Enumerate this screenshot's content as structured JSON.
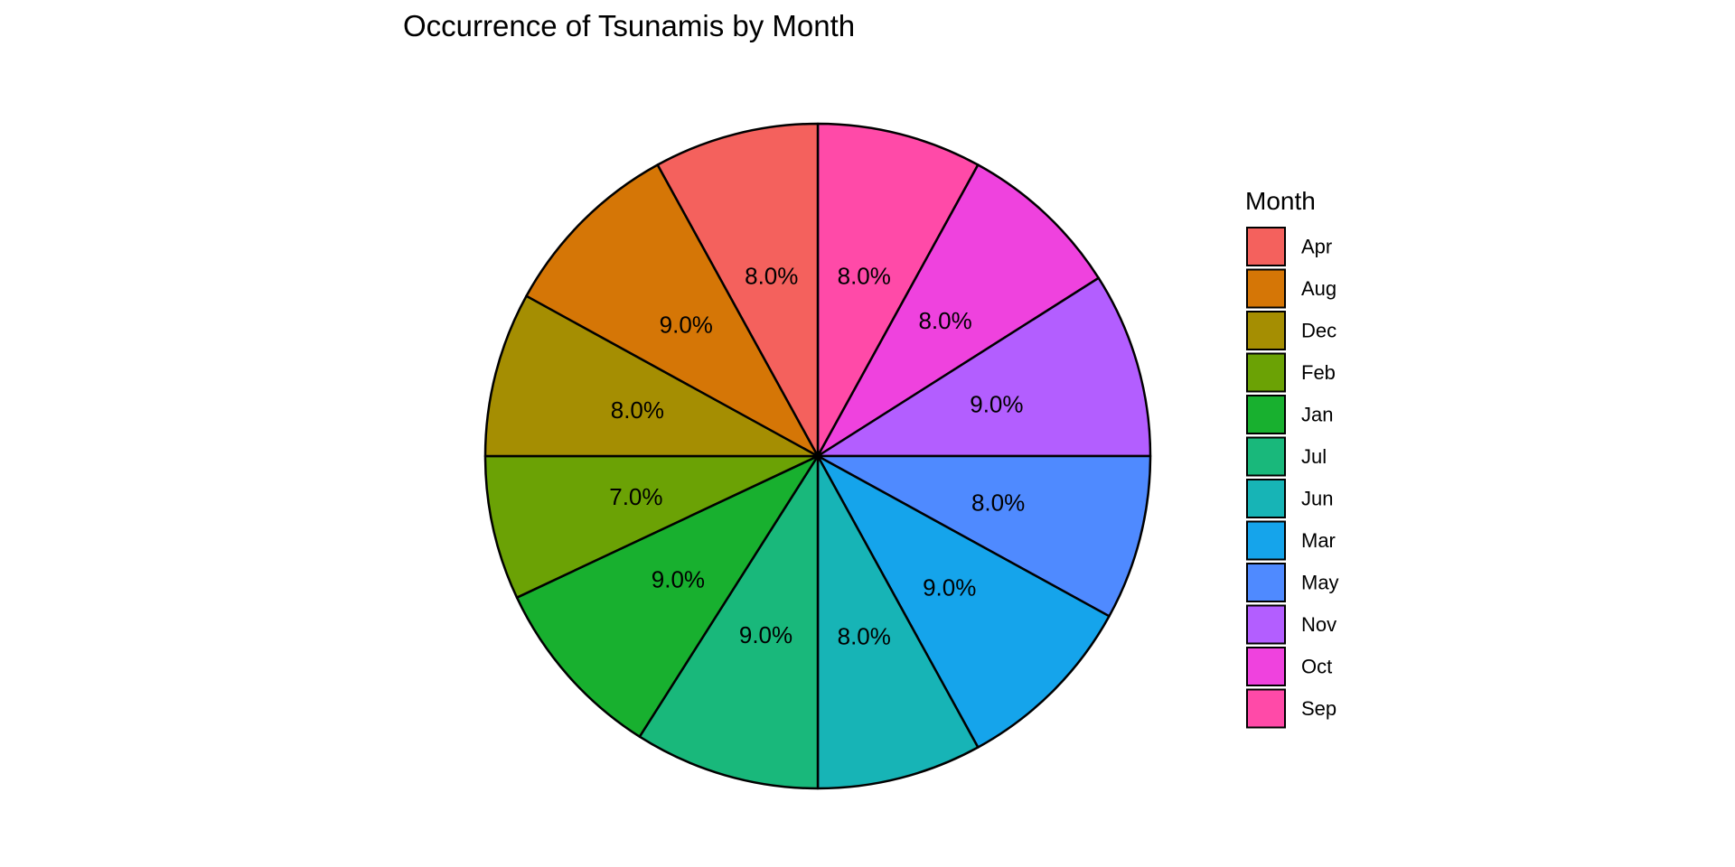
{
  "chart_data": {
    "type": "pie",
    "title": "Occurrence of Tsunamis by Month",
    "legend_title": "Month",
    "legend_position": "right",
    "slices": [
      {
        "label": "Sep",
        "value": 8.0,
        "label_text": "8.0%",
        "color": "#FF4AA8"
      },
      {
        "label": "Oct",
        "value": 8.0,
        "label_text": "8.0%",
        "color": "#EF42DE"
      },
      {
        "label": "Nov",
        "value": 9.0,
        "label_text": "9.0%",
        "color": "#B35EFF"
      },
      {
        "label": "May",
        "value": 8.0,
        "label_text": "8.0%",
        "color": "#4F8AFF"
      },
      {
        "label": "Mar",
        "value": 9.0,
        "label_text": "9.0%",
        "color": "#15A4EB"
      },
      {
        "label": "Jun",
        "value": 8.0,
        "label_text": "8.0%",
        "color": "#17B4B6"
      },
      {
        "label": "Jul",
        "value": 9.0,
        "label_text": "9.0%",
        "color": "#19B87B"
      },
      {
        "label": "Jan",
        "value": 9.0,
        "label_text": "9.0%",
        "color": "#18B02F"
      },
      {
        "label": "Feb",
        "value": 7.0,
        "label_text": "7.0%",
        "color": "#6BA205"
      },
      {
        "label": "Dec",
        "value": 8.0,
        "label_text": "8.0%",
        "color": "#A58E02"
      },
      {
        "label": "Aug",
        "value": 9.0,
        "label_text": "9.0%",
        "color": "#D57606"
      },
      {
        "label": "Apr",
        "value": 8.0,
        "label_text": "8.0%",
        "color": "#F4615D"
      }
    ],
    "legend_order": [
      "Apr",
      "Aug",
      "Dec",
      "Feb",
      "Jan",
      "Jul",
      "Jun",
      "Mar",
      "May",
      "Nov",
      "Oct",
      "Sep"
    ]
  }
}
